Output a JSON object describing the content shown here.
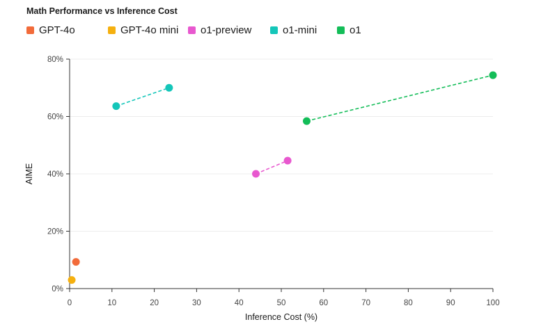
{
  "chart_data": {
    "type": "scatter",
    "title": "Math Performance vs Inference Cost",
    "xlabel": "Inference Cost (%)",
    "ylabel": "AIME",
    "xlim": [
      0,
      100
    ],
    "ylim": [
      0,
      80
    ],
    "x_ticks": [
      0,
      10,
      20,
      30,
      40,
      50,
      60,
      70,
      80,
      90,
      100
    ],
    "y_ticks": [
      0,
      20,
      40,
      60,
      80
    ],
    "y_tick_labels": [
      "0%",
      "20%",
      "40%",
      "60%",
      "80%"
    ],
    "grid": "horizontal",
    "legend_position": "top-left",
    "series": [
      {
        "name": "GPT-4o",
        "color": "#f26b3a",
        "points": [
          [
            1.5,
            9.3
          ]
        ],
        "dashed_line": false
      },
      {
        "name": "GPT-4o mini",
        "color": "#f5b00f",
        "points": [
          [
            0.5,
            3.0
          ]
        ],
        "dashed_line": false
      },
      {
        "name": "o1-preview",
        "color": "#e858cf",
        "points": [
          [
            44,
            40
          ],
          [
            51.5,
            44.6
          ]
        ],
        "dashed_line": true
      },
      {
        "name": "o1-mini",
        "color": "#14c6b9",
        "points": [
          [
            11,
            63.6
          ],
          [
            23.5,
            70
          ]
        ],
        "dashed_line": true
      },
      {
        "name": "o1",
        "color": "#13bd58",
        "points": [
          [
            56,
            58.4
          ],
          [
            100,
            74.4
          ]
        ],
        "dashed_line": true
      }
    ]
  }
}
